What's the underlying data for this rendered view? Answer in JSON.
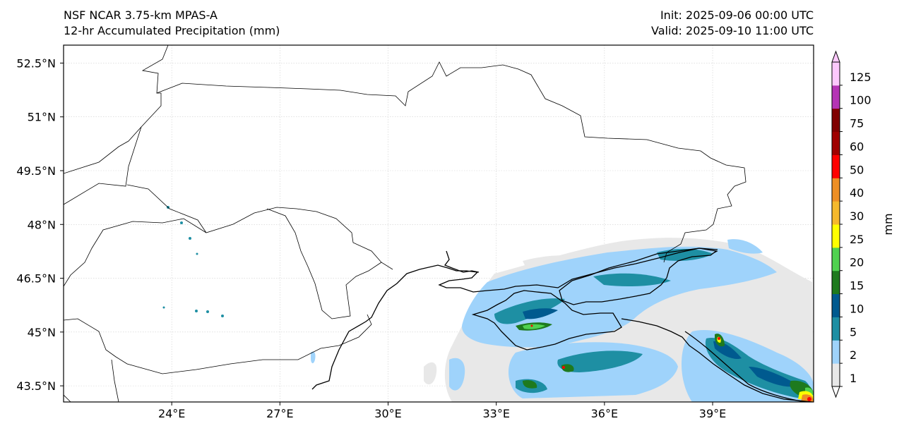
{
  "header": {
    "model": "NSF NCAR 3.75-km MPAS-A",
    "product": "12-hr Accumulated Precipitation (mm)",
    "init": "Init: 2025-09-06 00:00 UTC",
    "valid": "Valid: 2025-09-10 11:00 UTC"
  },
  "map": {
    "lon_range": [
      21.0,
      41.8
    ],
    "lat_range": [
      43.05,
      53.0
    ],
    "lon_ticks": [
      {
        "value": 24,
        "label": "24°E"
      },
      {
        "value": 27,
        "label": "27°E"
      },
      {
        "value": 30,
        "label": "30°E"
      },
      {
        "value": 33,
        "label": "33°E"
      },
      {
        "value": 36,
        "label": "36°E"
      },
      {
        "value": 39,
        "label": "39°E"
      }
    ],
    "lat_ticks": [
      {
        "value": 52.5,
        "label": "52.5°N"
      },
      {
        "value": 51.0,
        "label": "51°N"
      },
      {
        "value": 49.5,
        "label": "49.5°N"
      },
      {
        "value": 48.0,
        "label": "48°N"
      },
      {
        "value": 46.5,
        "label": "46.5°N"
      },
      {
        "value": 45.0,
        "label": "45°N"
      },
      {
        "value": 43.5,
        "label": "43.5°N"
      }
    ],
    "grid": true
  },
  "colorbar": {
    "units": "mm",
    "extend": "both",
    "levels": [
      {
        "label": "1",
        "color": "#e8e8e8"
      },
      {
        "label": "2",
        "color": "#9fd3fb"
      },
      {
        "label": "5",
        "color": "#1e8fa3"
      },
      {
        "label": "10",
        "color": "#005a8f"
      },
      {
        "label": "15",
        "color": "#1e7a1e"
      },
      {
        "label": "20",
        "color": "#50d250"
      },
      {
        "label": "25",
        "color": "#ffff00"
      },
      {
        "label": "30",
        "color": "#f5b92c"
      },
      {
        "label": "40",
        "color": "#ee8f25"
      },
      {
        "label": "50",
        "color": "#ff0000"
      },
      {
        "label": "60",
        "color": "#a00000"
      },
      {
        "label": "75",
        "color": "#800000"
      },
      {
        "label": "100",
        "color": "#b534b5"
      },
      {
        "label": "125",
        "color": "#fcc8fc"
      }
    ]
  }
}
